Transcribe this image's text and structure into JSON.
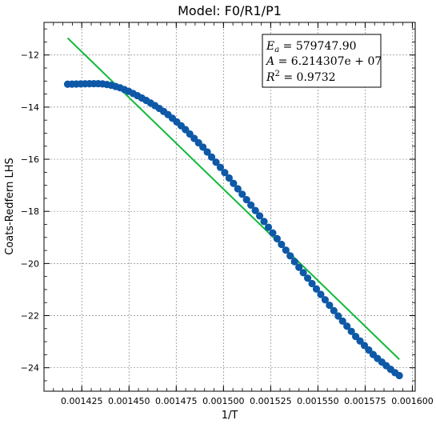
{
  "chart_data": {
    "type": "scatter",
    "title": "Model: F0/R1/P1",
    "xlabel": "1/T",
    "ylabel": "Coats-Redfern LHS",
    "xlim": [
      0.001405,
      0.0016015
    ],
    "ylim": [
      -24.9,
      -10.75
    ],
    "xticks": [
      0.001425,
      0.00145,
      0.001475,
      0.0015,
      0.001525,
      0.00155,
      0.001575,
      0.0016
    ],
    "xtick_labels": [
      "0.001425",
      "0.001450",
      "0.001475",
      "0.001500",
      "0.001525",
      "0.001550",
      "0.001575",
      "0.001600"
    ],
    "yticks": [
      -24,
      -22,
      -20,
      -18,
      -16,
      -14,
      -12
    ],
    "ytick_labels": [
      "−24",
      "−22",
      "−20",
      "−18",
      "−16",
      "−14",
      "−12"
    ],
    "grid": true,
    "legend_position": "top-right",
    "annotation": {
      "ea_label": "E",
      "ea_sub": "a",
      "ea_value": " = 579747.90",
      "a_label": "A",
      "a_value": " = 6.214307e + 07",
      "r_label": "R",
      "r_sup": "2",
      "r_value": " = 0.9732"
    },
    "series": [
      {
        "kind": "scatter",
        "color": "#0e59a7",
        "x_start": 0.0014175,
        "x_end": 0.0015931,
        "n_points": 77,
        "x_knots": [
          0.0014175,
          0.00143,
          0.001435,
          0.00144,
          0.001445,
          0.00145,
          0.001455,
          0.00146,
          0.001465,
          0.00147,
          0.001475,
          0.00148,
          0.00149,
          0.0015,
          0.00151,
          0.00152,
          0.00153,
          0.00154,
          0.00155,
          0.00156,
          0.00157,
          0.00158,
          0.001585,
          0.00159,
          0.0015931
        ],
        "y_knots": [
          -13.12,
          -13.1,
          -13.1,
          -13.15,
          -13.25,
          -13.4,
          -13.58,
          -13.78,
          -14.0,
          -14.25,
          -14.55,
          -14.87,
          -15.6,
          -16.45,
          -17.35,
          -18.25,
          -19.2,
          -20.15,
          -21.05,
          -21.95,
          -22.8,
          -23.55,
          -23.85,
          -24.15,
          -24.3
        ]
      },
      {
        "kind": "line",
        "color": "#10b93a",
        "x": [
          0.0014175,
          0.0015931
        ],
        "y": [
          -11.35,
          -23.68
        ]
      }
    ]
  }
}
